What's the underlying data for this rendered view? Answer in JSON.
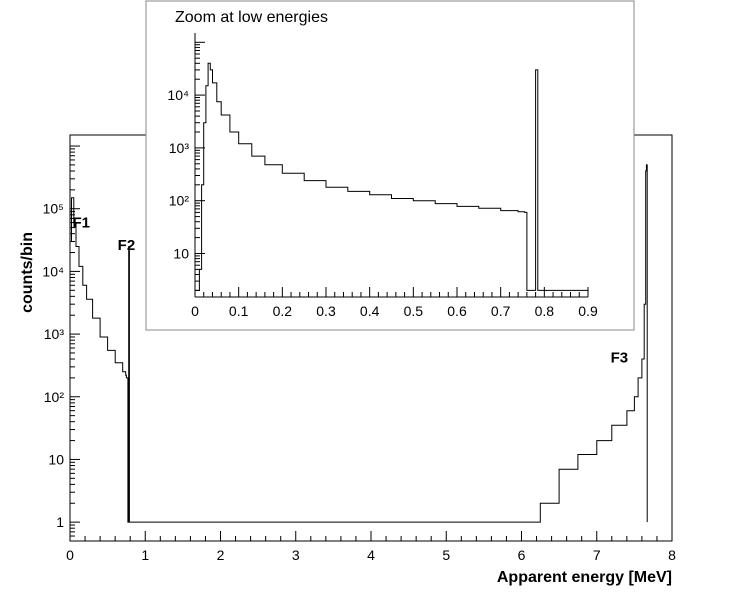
{
  "chart_data": [
    {
      "type": "histogram",
      "name": "main",
      "xlabel": "Apparent energy [MeV]",
      "ylabel": "counts/bin",
      "xlim": [
        0,
        8
      ],
      "ylim": [
        0.5,
        1500000
      ],
      "yscale": "log",
      "grid": false,
      "xticks": [
        "0",
        "1",
        "2",
        "3",
        "4",
        "5",
        "6",
        "7",
        "8"
      ],
      "yticks": [
        {
          "value": 1,
          "label": "1"
        },
        {
          "value": 10,
          "label": "10"
        },
        {
          "value": 100,
          "label": "10²"
        },
        {
          "value": 1000,
          "label": "10³"
        },
        {
          "value": 10000,
          "label": "10⁴"
        },
        {
          "value": 100000,
          "label": "10⁵"
        }
      ],
      "annotations": [
        {
          "text": "F1",
          "x": 0.15,
          "y": 50000
        },
        {
          "text": "F2",
          "x": 0.75,
          "y": 22000
        },
        {
          "text": "F3",
          "x": 7.3,
          "y": 350
        }
      ],
      "series": [
        {
          "x": [
            0.0,
            0.02,
            0.05,
            0.08,
            0.12,
            0.17,
            0.22,
            0.3,
            0.4,
            0.5,
            0.6,
            0.7,
            0.74,
            0.75,
            0.77,
            0.78,
            0.79,
            6.25,
            6.5,
            6.75,
            7.0,
            7.2,
            7.4,
            7.5,
            7.55,
            7.6,
            7.63,
            7.65,
            7.66,
            7.67
          ],
          "y": [
            30000,
            150000,
            60000,
            25000,
            12000,
            6000,
            3600,
            1800,
            900,
            550,
            350,
            250,
            220,
            200,
            1,
            25000,
            1,
            2,
            7,
            12,
            20,
            35,
            60,
            100,
            200,
            400,
            3000,
            400000,
            500000,
            1
          ]
        }
      ]
    },
    {
      "type": "histogram",
      "name": "inset",
      "title": "Zoom at low energies",
      "xlim": [
        0,
        0.9
      ],
      "ylim": [
        1.5,
        150000
      ],
      "yscale": "log",
      "grid": false,
      "xticks": [
        "0",
        "0.1",
        "0.2",
        "0.3",
        "0.4",
        "0.5",
        "0.6",
        "0.7",
        "0.8",
        "0.9"
      ],
      "yticks": [
        {
          "value": 10,
          "label": "10"
        },
        {
          "value": 100,
          "label": "10²"
        },
        {
          "value": 1000,
          "label": "10³"
        },
        {
          "value": 10000,
          "label": "10⁴"
        }
      ],
      "series": [
        {
          "x": [
            0.0,
            0.01,
            0.015,
            0.02,
            0.025,
            0.03,
            0.035,
            0.04,
            0.05,
            0.06,
            0.08,
            0.1,
            0.13,
            0.16,
            0.2,
            0.25,
            0.3,
            0.35,
            0.4,
            0.45,
            0.5,
            0.55,
            0.6,
            0.65,
            0.7,
            0.74,
            0.755,
            0.76,
            0.78,
            0.785,
            0.9
          ],
          "y": [
            2,
            5,
            200,
            3000,
            15000,
            40000,
            30000,
            17000,
            7500,
            4200,
            2000,
            1200,
            700,
            480,
            330,
            240,
            180,
            150,
            130,
            110,
            100,
            88,
            78,
            72,
            65,
            62,
            60,
            2,
            30000,
            2,
            2
          ]
        }
      ]
    }
  ]
}
